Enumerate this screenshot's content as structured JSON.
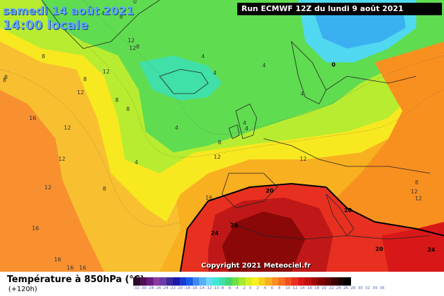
{
  "header": {
    "date_line": "samedi 14 août 2021",
    "time_line": "14:00 locale",
    "run_info": "Run ECMWF 12Z du lundi 9 août 2021"
  },
  "footer": {
    "copyright": "Copyright 2021 Meteociel.fr"
  },
  "legend": {
    "title": "Température à 850hPa (°C)",
    "subtitle": "(+120h)",
    "colors": [
      "#2a0a2a",
      "#4e1050",
      "#6a1a80",
      "#8a3aa0",
      "#6a3aa8",
      "#3a2a9a",
      "#1a1aa8",
      "#1a3ad0",
      "#1a5ae8",
      "#3a8af0",
      "#5ab0f8",
      "#6ad8f8",
      "#40e8d8",
      "#40e0a8",
      "#40d870",
      "#70e040",
      "#a8e830",
      "#d8f020",
      "#f8f020",
      "#f8d020",
      "#f8b020",
      "#f89020",
      "#f87020",
      "#f05020",
      "#e83020",
      "#d81818",
      "#c01010",
      "#a00808",
      "#800000",
      "#600000",
      "#400000",
      "#200000",
      "#000000"
    ],
    "ticks": [
      "-32",
      "-30",
      "-28",
      "-26",
      "-24",
      "-22",
      "-20",
      "-18",
      "-16",
      "-14",
      "-12",
      "-10",
      "-8",
      "-6",
      "-4",
      "-2",
      "0",
      "2",
      "4",
      "6",
      "8",
      "10",
      "12",
      "14",
      "16",
      "18",
      "20",
      "22",
      "24",
      "26",
      "28",
      "30",
      "32",
      "34",
      "36"
    ]
  },
  "contour_labels": [
    {
      "text": "8"
    },
    {
      "text": "12"
    },
    {
      "text": "12"
    },
    {
      "text": "8"
    },
    {
      "text": "4"
    },
    {
      "text": "0"
    },
    {
      "text": "8"
    },
    {
      "text": "12"
    },
    {
      "text": "12"
    },
    {
      "text": "8"
    },
    {
      "text": "4"
    },
    {
      "text": "4"
    },
    {
      "text": "8"
    },
    {
      "text": "16"
    },
    {
      "text": "12"
    },
    {
      "text": "8"
    },
    {
      "text": "4"
    },
    {
      "text": "4"
    },
    {
      "text": "4"
    },
    {
      "text": "4"
    },
    {
      "text": "8"
    },
    {
      "text": "12"
    },
    {
      "text": "4"
    },
    {
      "text": "12"
    },
    {
      "text": "8"
    },
    {
      "text": "12"
    },
    {
      "text": "8"
    },
    {
      "text": "12"
    },
    {
      "text": "16"
    },
    {
      "text": "20"
    },
    {
      "text": "20"
    },
    {
      "text": "12"
    },
    {
      "text": "16"
    },
    {
      "text": "24"
    },
    {
      "text": "28"
    },
    {
      "text": "16"
    },
    {
      "text": "16"
    },
    {
      "text": "20"
    },
    {
      "text": "24"
    },
    {
      "text": "16"
    },
    {
      "text": "0"
    },
    {
      "text": "4"
    },
    {
      "text": "8"
    },
    {
      "text": "8"
    },
    {
      "text": "12"
    }
  ]
}
